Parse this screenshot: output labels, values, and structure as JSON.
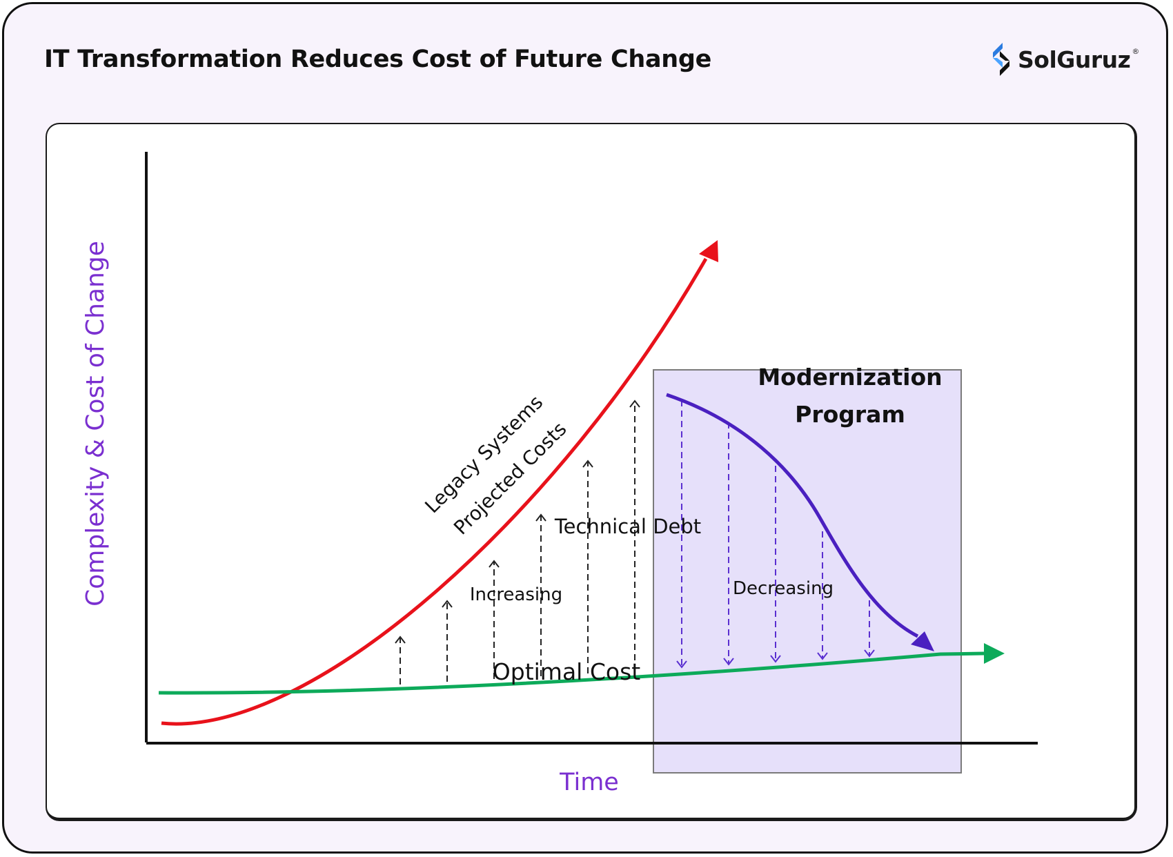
{
  "header": {
    "title": "IT Transformation Reduces Cost of Future Change",
    "brand": "SolGuruz",
    "brand_mark": "®"
  },
  "diagram": {
    "y_axis_label": "Complexity & Cost of Change",
    "x_axis_label": "Time",
    "legacy_label_line1": "Legacy Systems",
    "legacy_label_line2": "Projected Costs",
    "technical_debt_label": "Technical Debt",
    "increasing_label": "Increasing",
    "decreasing_label": "Decreasing",
    "optimal_cost_label": "Optimal Cost",
    "modernization_line1": "Modernization",
    "modernization_line2": "Program",
    "colors": {
      "legacy_curve": "#e8121b",
      "optimal_curve": "#0daa5a",
      "modernization_curve": "#4a20c0",
      "axis_label": "#7a2fd0",
      "modernization_box": "#e6e0fa",
      "arrows_increasing": "#222222",
      "arrows_decreasing": "#5a2fd0"
    }
  }
}
